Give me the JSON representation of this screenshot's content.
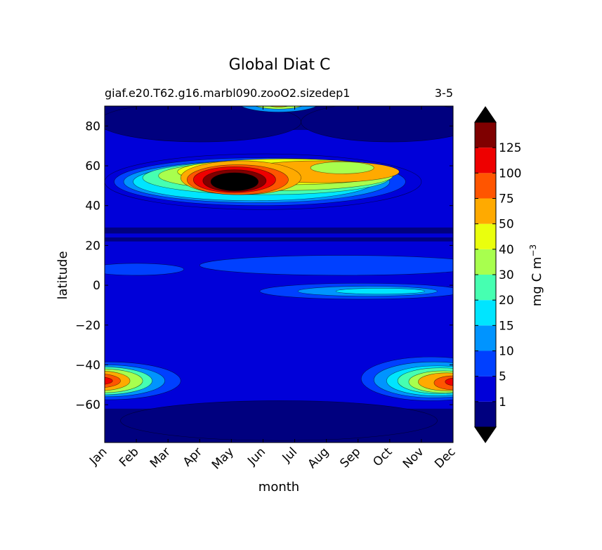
{
  "chart_data": {
    "type": "heatmap",
    "title": "Global Diat C",
    "subtitle_left": "giaf.e20.T62.g16.marbl090.zooO2.sizedep1",
    "subtitle_right": "3-5",
    "xlabel": "month",
    "ylabel": "latitude",
    "x_tick_labels": [
      "Jan",
      "Feb",
      "Mar",
      "Apr",
      "May",
      "Jun",
      "Jul",
      "Aug",
      "Sep",
      "Oct",
      "Nov",
      "Dec"
    ],
    "y_ticks": [
      80,
      60,
      40,
      20,
      0,
      -20,
      -40,
      -60
    ],
    "y_tick_labels": [
      "80",
      "60",
      "40",
      "20",
      "0",
      "−20",
      "−40",
      "−60"
    ],
    "xlim": [
      0.5,
      11.5
    ],
    "ylim": [
      -79,
      90
    ],
    "colorbar": {
      "label": "mg C m",
      "label_superscript": "−3",
      "levels": [
        1,
        5,
        10,
        15,
        20,
        30,
        40,
        50,
        75,
        100,
        125,
        150
      ],
      "tick_labels": [
        "1",
        "5",
        "10",
        "15",
        "20",
        "30",
        "40",
        "50",
        "75",
        "100",
        "125"
      ],
      "colors": [
        "#00007f",
        "#0000d9",
        "#0040ff",
        "#0094ff",
        "#00e5ff",
        "#46ffb1",
        "#a8ff4e",
        "#eaff0d",
        "#ffaa00",
        "#ff5500",
        "#ee0000",
        "#7f0000"
      ],
      "under_color": "#000000",
      "over_color": "#000000"
    },
    "features": [
      {
        "region": "northern spring bloom",
        "peak_month": 4.6,
        "peak_lat": 52,
        "peak_value": ">150"
      },
      {
        "region": "northern summer plateau",
        "months": "Jun-Sep",
        "lat_range": [
          45,
          65
        ],
        "value_range": [
          40,
          75
        ]
      },
      {
        "region": "Arctic summer",
        "peak_month": 6.0,
        "peak_lat": 89,
        "value_range": [
          40,
          75
        ]
      },
      {
        "region": "equatorial band",
        "months": "Aug-Oct",
        "lat_range": [
          -6,
          2
        ],
        "value_range": [
          10,
          20
        ]
      },
      {
        "region": "southern summer bloom (Nov-Dec)",
        "peak_month": 11.1,
        "peak_lat": -49,
        "peak_value": 125
      },
      {
        "region": "southern summer bloom (Jan)",
        "peak_month": 0.5,
        "peak_lat": -48,
        "peak_value": 125
      }
    ]
  }
}
